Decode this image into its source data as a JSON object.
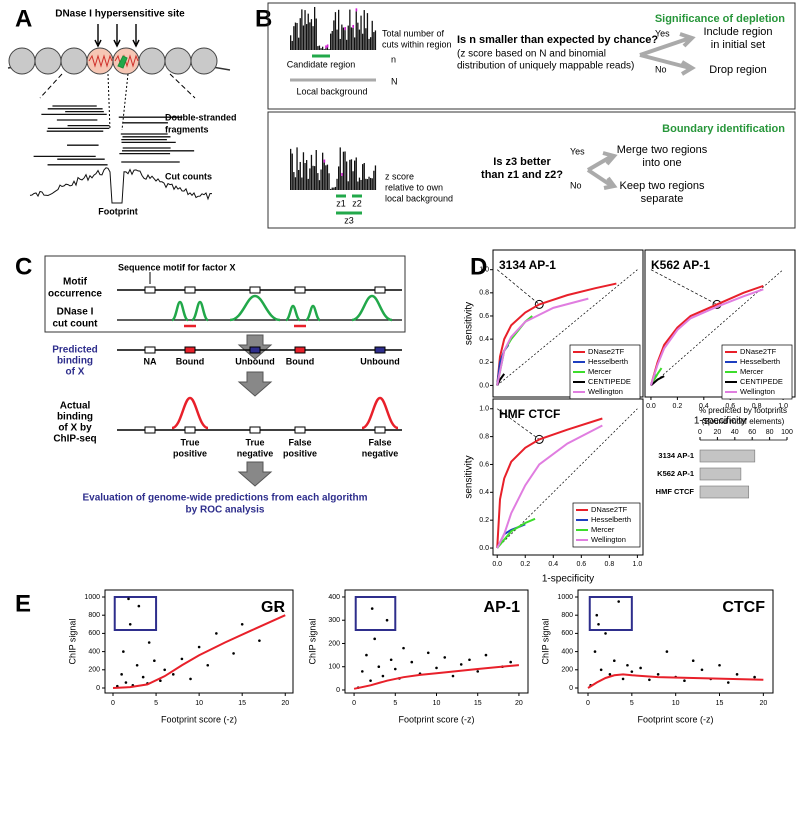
{
  "panel_labels": [
    "A",
    "B",
    "C",
    "D",
    "E"
  ],
  "panel_a": {
    "site": "DNase I hypersensitive site",
    "fragments": [
      "Double-stranded",
      "fragments"
    ],
    "cut_counts": "Cut counts",
    "footprint": "Footprint"
  },
  "panel_b": {
    "depletion": {
      "title": "Significance of depletion",
      "total": [
        "Total number of",
        "cuts within region"
      ],
      "n": "n",
      "N": "N",
      "candidate": "Candidate region",
      "background": "Local background",
      "question": "Is n smaller than expected by chance?",
      "note": [
        "(z score based on N and binomial",
        "distribution of uniquely mappable reads)"
      ],
      "yes": "Yes",
      "no": "No",
      "include": [
        "Include region",
        "in initial set"
      ],
      "drop": "Drop region"
    },
    "boundary": {
      "title": "Boundary identification",
      "z1": "z1",
      "z2": "z2",
      "z3": "z3",
      "zscore": [
        "z score",
        "relative to own",
        "local background"
      ],
      "question": [
        "Is z3 better",
        "than z1 and z2?"
      ],
      "yes": "Yes",
      "no": "No",
      "merge": [
        "Merge two regions",
        "into one"
      ],
      "keep": [
        "Keep two regions",
        "separate"
      ]
    }
  },
  "panel_c": {
    "motif": [
      "Motif",
      "occurrence"
    ],
    "motif_note": "Sequence motif for factor X",
    "cut": [
      "DNase I",
      "cut count"
    ],
    "predicted": [
      "Predicted",
      "binding",
      "of X"
    ],
    "predictions": [
      "NA",
      "Bound",
      "Unbound",
      "Bound",
      "Unbound"
    ],
    "actual": [
      "Actual",
      "binding",
      "of X by",
      "ChIP-seq"
    ],
    "outcomes": [
      [
        "True",
        "positive"
      ],
      [
        "True",
        "negative"
      ],
      [
        "False",
        "positive"
      ],
      [
        "False",
        "negative"
      ]
    ],
    "evaluation": [
      "Evaluation of genome-wide predictions from each algorithm",
      "by ROC analysis"
    ]
  },
  "chart_data": [
    {
      "type": "line",
      "title": "3134 AP-1",
      "ylabel": "sensitivity",
      "xlim": [
        -0.03,
        1.04
      ],
      "ylim": [
        -0.1,
        1.17
      ],
      "yticks": [
        {
          "value": 0,
          "label": "0.0"
        },
        {
          "value": 0.2,
          "label": "0.2"
        },
        {
          "value": 0.4,
          "label": "0.4"
        },
        {
          "value": 0.6,
          "label": "0.6"
        },
        {
          "value": 0.8,
          "label": "0.8"
        },
        {
          "value": 1,
          "label": "1.0"
        }
      ],
      "series": [
        {
          "name": "DNase2TF",
          "color": "#e8202a",
          "x": [
            0,
            0.02,
            0.05,
            0.1,
            0.2,
            0.3,
            0.5,
            0.7,
            0.85
          ],
          "values": [
            0,
            0.25,
            0.4,
            0.52,
            0.63,
            0.7,
            0.78,
            0.84,
            0.88
          ]
        },
        {
          "name": "Hesselberth",
          "color": "#1f3fbf",
          "x": [
            0,
            0.02,
            0.05,
            0.08
          ],
          "values": [
            0,
            0.2,
            0.3,
            0.35
          ]
        },
        {
          "name": "Mercer",
          "color": "#3ddc2c",
          "x": [
            0,
            0.05,
            0.1,
            0.2,
            0.25
          ],
          "values": [
            0,
            0.3,
            0.4,
            0.55,
            0.6
          ]
        },
        {
          "name": "CENTIPEDE",
          "color": "#000000",
          "x": [
            0,
            0.02,
            0.05
          ],
          "values": [
            0,
            0.05,
            0.1
          ]
        },
        {
          "name": "Wellington",
          "color": "#e07de0",
          "x": [
            0,
            0.05,
            0.1,
            0.2,
            0.4,
            0.65
          ],
          "values": [
            0,
            0.3,
            0.42,
            0.55,
            0.67,
            0.75
          ]
        }
      ]
    },
    {
      "type": "line",
      "title": "K562 AP-1",
      "xlabel": "1-specificity",
      "xlim": [
        -0.045,
        1.09
      ],
      "ylim": [
        -0.1,
        1.17
      ],
      "xticks": [
        {
          "value": 0,
          "label": "0.0"
        },
        {
          "value": 0.2,
          "label": "0.2"
        },
        {
          "value": 0.4,
          "label": "0.4"
        },
        {
          "value": 0.6,
          "label": "0.6"
        },
        {
          "value": 0.8,
          "label": "0.8"
        },
        {
          "value": 1,
          "label": "1.0"
        }
      ],
      "series": [
        {
          "name": "DNase2TF",
          "color": "#e8202a",
          "x": [
            0,
            0.05,
            0.1,
            0.2,
            0.3,
            0.5,
            0.7,
            0.85
          ],
          "values": [
            0,
            0.2,
            0.35,
            0.5,
            0.6,
            0.7,
            0.8,
            0.86
          ]
        },
        {
          "name": "Hesselberth",
          "color": "#1f3fbf",
          "x": [
            0,
            0.03
          ],
          "values": [
            0,
            0.1
          ]
        },
        {
          "name": "Mercer",
          "color": "#3ddc2c",
          "x": [
            0,
            0.05,
            0.08
          ],
          "values": [
            0,
            0.1,
            0.15
          ]
        },
        {
          "name": "CENTIPEDE",
          "color": "#000000",
          "x": [
            0,
            0.05,
            0.1
          ],
          "values": [
            0,
            0.05,
            0.08
          ]
        },
        {
          "name": "Wellington",
          "color": "#e07de0",
          "x": [
            0,
            0.05,
            0.1,
            0.2,
            0.3,
            0.5,
            0.7,
            0.85
          ],
          "values": [
            0,
            0.18,
            0.32,
            0.48,
            0.58,
            0.68,
            0.77,
            0.83
          ]
        }
      ]
    },
    {
      "type": "line",
      "title": "HMF CTCF",
      "ylabel": "sensitivity",
      "xlabel": "1-specificity",
      "xlim": [
        -0.03,
        1.04
      ],
      "ylim": [
        -0.05,
        1.07
      ],
      "xticks": [
        {
          "value": 0,
          "label": "0.0"
        },
        {
          "value": 0.2,
          "label": "0.2"
        },
        {
          "value": 0.4,
          "label": "0.4"
        },
        {
          "value": 0.6,
          "label": "0.6"
        },
        {
          "value": 0.8,
          "label": "0.8"
        },
        {
          "value": 1,
          "label": "1.0"
        }
      ],
      "yticks": [
        {
          "value": 0,
          "label": "0.0"
        },
        {
          "value": 0.2,
          "label": "0.2"
        },
        {
          "value": 0.4,
          "label": "0.4"
        },
        {
          "value": 0.6,
          "label": "0.6"
        },
        {
          "value": 0.8,
          "label": "0.8"
        },
        {
          "value": 1,
          "label": "1.0"
        }
      ],
      "series": [
        {
          "name": "DNase2TF",
          "color": "#e8202a",
          "x": [
            0,
            0.02,
            0.05,
            0.1,
            0.2,
            0.3,
            0.5,
            0.75
          ],
          "values": [
            0,
            0.35,
            0.5,
            0.62,
            0.72,
            0.78,
            0.85,
            0.93
          ]
        },
        {
          "name": "Hesselberth",
          "color": "#1f3fbf",
          "x": [
            0,
            0.05,
            0.1,
            0.15,
            0.2
          ],
          "values": [
            0,
            0.1,
            0.13,
            0.15,
            0.17
          ]
        },
        {
          "name": "Mercer",
          "color": "#3ddc2c",
          "x": [
            0,
            0.1,
            0.2,
            0.27
          ],
          "values": [
            0,
            0.12,
            0.18,
            0.21
          ]
        },
        {
          "name": "Wellington",
          "color": "#e07de0",
          "x": [
            0,
            0.05,
            0.1,
            0.2,
            0.3,
            0.5,
            0.75
          ],
          "values": [
            0,
            0.1,
            0.25,
            0.45,
            0.6,
            0.75,
            0.88
          ]
        }
      ]
    },
    {
      "type": "bar",
      "title": "% predicted by footprints",
      "subtitle": "(Bound motif elements)",
      "categories": [
        "3134 AP-1",
        "K562 AP-1",
        "HMF CTCF"
      ],
      "values": [
        63,
        47,
        56
      ],
      "color": "#c4c4c4",
      "xlim": [
        0,
        100
      ],
      "xticks": [
        0,
        20,
        40,
        60,
        80,
        100
      ]
    },
    {
      "type": "scatter",
      "title": "GR",
      "xlabel": "Footprint score (-z)",
      "ylabel": "ChIP signal",
      "xlim": [
        -0.93,
        20.9
      ],
      "ylim": [
        -55,
        1077
      ],
      "xticks": [
        0,
        5,
        10,
        15,
        20
      ],
      "yticks": [
        0,
        200,
        400,
        600,
        800,
        1000
      ],
      "series": [
        {
          "color": "#000000",
          "x": [
            0.5,
            1,
            1.2,
            1.5,
            2,
            2.3,
            2.8,
            3,
            3.5,
            4,
            4.2,
            4.8,
            5.5,
            6,
            7,
            8,
            9,
            10,
            11,
            12,
            14,
            15,
            17,
            19,
            1.8
          ],
          "values": [
            20,
            150,
            400,
            60,
            700,
            30,
            250,
            900,
            120,
            50,
            500,
            300,
            80,
            200,
            150,
            320,
            100,
            450,
            250,
            600,
            380,
            700,
            520,
            850,
            980
          ]
        },
        {
          "color": "#e8202a",
          "x": [
            0,
            2,
            4,
            6,
            8,
            10,
            13,
            16,
            20
          ],
          "values": [
            0,
            10,
            40,
            130,
            250,
            360,
            500,
            630,
            800
          ]
        }
      ]
    },
    {
      "type": "scatter",
      "title": "AP-1",
      "xlabel": "Footprint score (-z)",
      "ylabel": "ChIP signal",
      "xlim": [
        -1.1,
        21.1
      ],
      "ylim": [
        -13,
        430
      ],
      "xticks": [
        0,
        5,
        10,
        15,
        20
      ],
      "yticks": [
        0,
        100,
        200,
        300,
        400
      ],
      "series": [
        {
          "color": "#000000",
          "x": [
            0.5,
            1,
            1.5,
            2,
            2.5,
            3,
            3.5,
            4,
            4.5,
            5,
            5.5,
            6,
            7,
            8,
            9,
            10,
            11,
            12,
            13,
            14,
            15,
            16,
            18,
            19,
            2.2
          ],
          "values": [
            10,
            80,
            150,
            40,
            220,
            100,
            60,
            300,
            130,
            90,
            50,
            180,
            120,
            70,
            160,
            95,
            140,
            60,
            110,
            130,
            80,
            150,
            100,
            120,
            350
          ]
        },
        {
          "color": "#e8202a",
          "x": [
            0,
            2,
            4,
            6,
            8,
            10,
            15,
            20
          ],
          "values": [
            5,
            20,
            40,
            55,
            65,
            72,
            90,
            107
          ]
        }
      ]
    },
    {
      "type": "scatter",
      "title": "CTCF",
      "xlabel": "Footprint score (-z)",
      "ylabel": "ChIP signal",
      "xlim": [
        -1.14,
        21.1
      ],
      "ylim": [
        -55,
        1077
      ],
      "xticks": [
        0,
        5,
        10,
        15,
        20
      ],
      "yticks": [
        0,
        200,
        400,
        600,
        800,
        1000
      ],
      "series": [
        {
          "color": "#000000",
          "x": [
            0.3,
            0.8,
            1,
            1.5,
            2,
            2.5,
            3,
            3.5,
            4,
            4.5,
            5,
            6,
            7,
            8,
            9,
            10,
            11,
            12,
            13,
            14,
            15,
            16,
            17,
            19,
            1.2
          ],
          "values": [
            30,
            400,
            800,
            200,
            600,
            150,
            300,
            950,
            100,
            250,
            180,
            220,
            90,
            150,
            400,
            120,
            80,
            300,
            200,
            100,
            250,
            60,
            150,
            120,
            700
          ]
        },
        {
          "color": "#e8202a",
          "x": [
            0,
            1,
            2,
            3,
            4,
            5,
            8,
            12,
            16,
            20
          ],
          "values": [
            0,
            60,
            110,
            140,
            150,
            140,
            120,
            110,
            100,
            90
          ]
        }
      ]
    }
  ]
}
